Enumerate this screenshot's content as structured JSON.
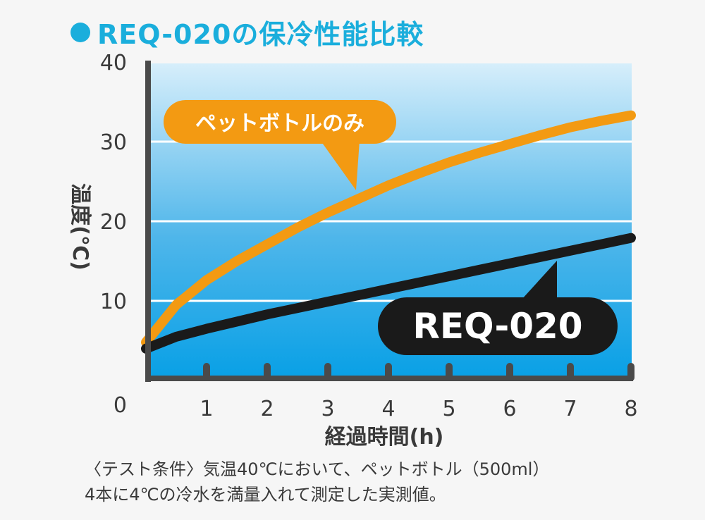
{
  "title": "REQ-020の保冷性能比較",
  "chart_data": {
    "type": "line",
    "title": "REQ-020の保冷性能比較",
    "xlabel": "経過時間(h)",
    "ylabel": "温度(℃)",
    "x_ticks": [
      "1",
      "2",
      "3",
      "4",
      "5",
      "6",
      "7",
      "8"
    ],
    "y_ticks": [
      "0",
      "10",
      "20",
      "30",
      "40"
    ],
    "xlim": [
      0,
      8
    ],
    "ylim": [
      0,
      40
    ],
    "x": [
      0,
      0.5,
      1,
      1.5,
      2,
      2.5,
      3,
      3.5,
      4,
      4.5,
      5,
      5.5,
      6,
      6.5,
      7,
      7.5,
      8
    ],
    "series": [
      {
        "name": "ペットボトルのみ",
        "color": "#f39a12",
        "values": [
          4.8,
          9.5,
          12.6,
          15.0,
          17.1,
          19.2,
          21.1,
          22.8,
          24.5,
          26.0,
          27.4,
          28.6,
          29.7,
          30.8,
          31.8,
          32.6,
          33.3
        ]
      },
      {
        "name": "REQ-020",
        "color": "#1a1a1a",
        "values": [
          4.0,
          5.5,
          6.5,
          7.4,
          8.3,
          9.1,
          9.9,
          10.7,
          11.5,
          12.3,
          13.1,
          13.9,
          14.7,
          15.5,
          16.3,
          17.1,
          17.9
        ]
      }
    ],
    "grid": true,
    "background": "blue gradient"
  },
  "notes": [
    "〈テスト条件〉気温40℃において、ペットボトル（500ml）",
    "4本に4℃の冷水を満量入れて測定した実測値。"
  ]
}
